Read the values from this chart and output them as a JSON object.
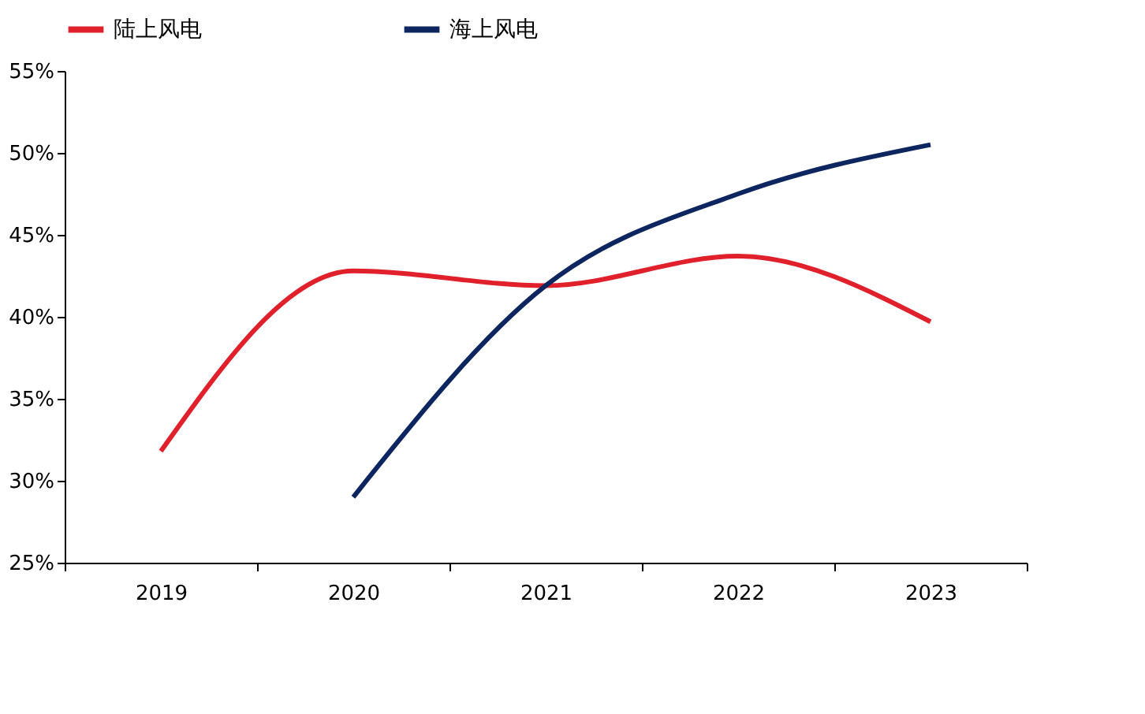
{
  "chart_data": {
    "type": "line",
    "categories": [
      "2019",
      "2020",
      "2021",
      "2022",
      "2023"
    ],
    "series": [
      {
        "name": "陆上风电",
        "color": "#e0202b",
        "values": [
          31.8,
          42.8,
          41.9,
          43.7,
          39.7
        ]
      },
      {
        "name": "海上风电",
        "color": "#0d2660",
        "values": [
          null,
          29.0,
          41.9,
          47.5,
          50.5
        ]
      }
    ],
    "ylim": [
      25,
      55
    ],
    "yticks": [
      {
        "value": 25,
        "label": "25%"
      },
      {
        "value": 30,
        "label": "30%"
      },
      {
        "value": 35,
        "label": "35%"
      },
      {
        "value": 40,
        "label": "40%"
      },
      {
        "value": 45,
        "label": "45%"
      },
      {
        "value": 50,
        "label": "50%"
      },
      {
        "value": 55,
        "label": "55%"
      }
    ],
    "legend": "top",
    "grid": false,
    "marker": "none",
    "line_style": "solid"
  }
}
